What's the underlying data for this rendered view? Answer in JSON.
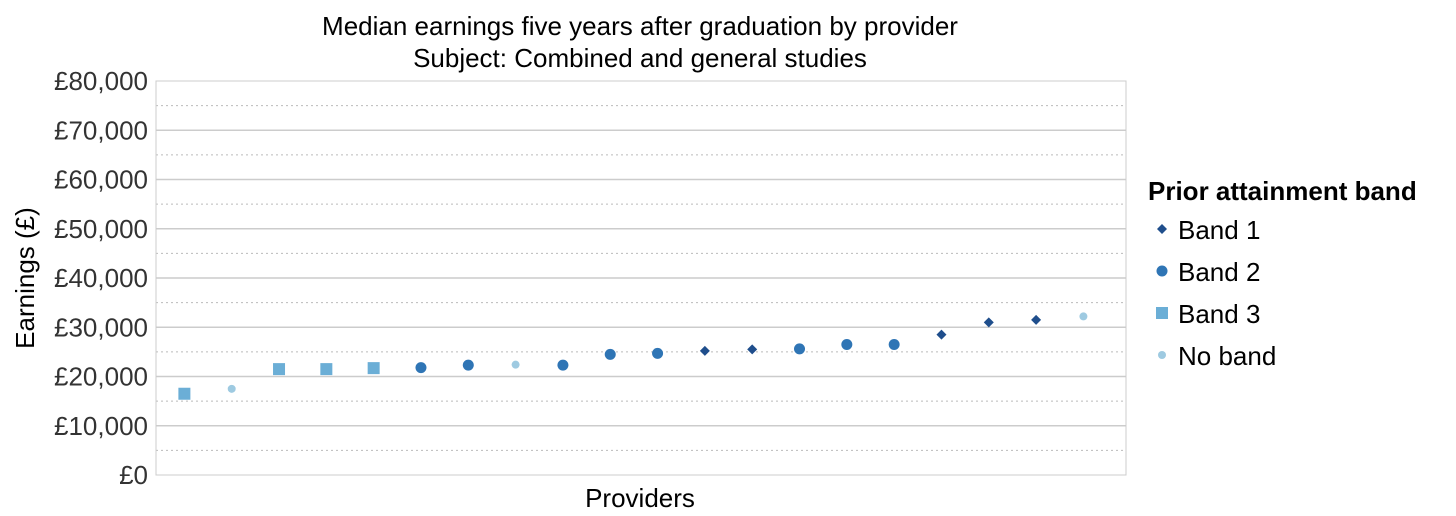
{
  "chart_data": {
    "type": "scatter",
    "title": "Median earnings five years after graduation by provider",
    "subtitle": "Subject: Combined and general studies",
    "xlabel": "Providers",
    "ylabel": "Earnings (£)",
    "ylim": [
      0,
      80000
    ],
    "y_ticks": [
      {
        "value": 0,
        "label": "£0"
      },
      {
        "value": 10000,
        "label": "£10,000"
      },
      {
        "value": 20000,
        "label": "£20,000"
      },
      {
        "value": 30000,
        "label": "£30,000"
      },
      {
        "value": 40000,
        "label": "£40,000"
      },
      {
        "value": 50000,
        "label": "£50,000"
      },
      {
        "value": 60000,
        "label": "£60,000"
      },
      {
        "value": 70000,
        "label": "£70,000"
      },
      {
        "value": 80000,
        "label": "£80,000"
      }
    ],
    "grid": true,
    "legend_title": "Prior attainment band",
    "legend_position": "right",
    "series": [
      {
        "key": "band1",
        "name": "Band 1",
        "color": "#1f4e8c",
        "marker": "diamond"
      },
      {
        "key": "band2",
        "name": "Band 2",
        "color": "#2f75b5",
        "marker": "circle"
      },
      {
        "key": "band3",
        "name": "Band 3",
        "color": "#6baed6",
        "marker": "square"
      },
      {
        "key": "noband",
        "name": "No band",
        "color": "#9ecae1",
        "marker": "small-circle"
      }
    ],
    "points": [
      {
        "x": 1,
        "y": 16500,
        "band": "band3"
      },
      {
        "x": 2,
        "y": 17500,
        "band": "noband"
      },
      {
        "x": 3,
        "y": 21500,
        "band": "band3"
      },
      {
        "x": 4,
        "y": 21500,
        "band": "band3"
      },
      {
        "x": 5,
        "y": 21700,
        "band": "band3"
      },
      {
        "x": 6,
        "y": 21800,
        "band": "band2"
      },
      {
        "x": 7,
        "y": 22300,
        "band": "band2"
      },
      {
        "x": 8,
        "y": 22400,
        "band": "noband"
      },
      {
        "x": 9,
        "y": 22300,
        "band": "band2"
      },
      {
        "x": 10,
        "y": 24500,
        "band": "band2"
      },
      {
        "x": 11,
        "y": 24700,
        "band": "band2"
      },
      {
        "x": 12,
        "y": 25200,
        "band": "band1"
      },
      {
        "x": 13,
        "y": 25500,
        "band": "band1"
      },
      {
        "x": 14,
        "y": 25600,
        "band": "band2"
      },
      {
        "x": 15,
        "y": 26500,
        "band": "band2"
      },
      {
        "x": 16,
        "y": 26500,
        "band": "band2"
      },
      {
        "x": 17,
        "y": 28500,
        "band": "band1"
      },
      {
        "x": 18,
        "y": 31000,
        "band": "band1"
      },
      {
        "x": 19,
        "y": 31500,
        "band": "band1"
      },
      {
        "x": 20,
        "y": 32200,
        "band": "noband"
      }
    ]
  }
}
